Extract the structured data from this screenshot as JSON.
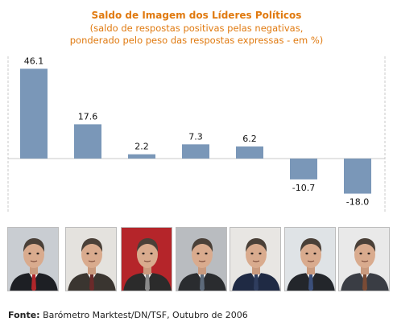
{
  "title": "Saldo de Imagem dos Líderes Políticos",
  "subtitle_line1": "(saldo de respostas positivas pelas negativas,",
  "subtitle_line2": "ponderado pelo peso das respostas expressas - em %)",
  "source_label": "Fonte:",
  "source_text": " Barómetro Marktest/DN/TSF, Outubro de 2006",
  "colors": {
    "bar": "#7a97b8",
    "title": "#e07a10"
  },
  "chart_data": {
    "type": "bar",
    "title": "Saldo de Imagem dos Líderes Políticos",
    "values": [
      46.1,
      17.6,
      2.2,
      7.3,
      6.2,
      -10.7,
      -18.0
    ],
    "value_labels": [
      "46.1",
      "17.6",
      "2.2",
      "7.3",
      "6.2",
      "-10.7",
      "-18.0"
    ],
    "ylim": [
      -30,
      50
    ],
    "grid": false,
    "legend": "none"
  },
  "portraits": [
    {
      "icon": "leader-portrait-1",
      "bg": "#c9cdd2",
      "suit": "#1d1f24",
      "tie": "#b0262a"
    },
    {
      "icon": "leader-portrait-2",
      "bg": "#e4e2de",
      "suit": "#3a3530",
      "tie": "#6b2a2a"
    },
    {
      "icon": "leader-portrait-3",
      "bg": "#b5252a",
      "suit": "#2b2b2b",
      "tie": "#8a8a8a"
    },
    {
      "icon": "leader-portrait-4",
      "bg": "#b9bcc0",
      "suit": "#2a2c2f",
      "tie": "#5d6a7a"
    },
    {
      "icon": "leader-portrait-5",
      "bg": "#e8e6e3",
      "suit": "#1f2a44",
      "tie": "#2f3d5e"
    },
    {
      "icon": "leader-portrait-6",
      "bg": "#dfe3e6",
      "suit": "#23262b",
      "tie": "#3b4f7a"
    },
    {
      "icon": "leader-portrait-7",
      "bg": "#e9e9e9",
      "suit": "#3a3d44",
      "tie": "#7a4b35"
    }
  ]
}
